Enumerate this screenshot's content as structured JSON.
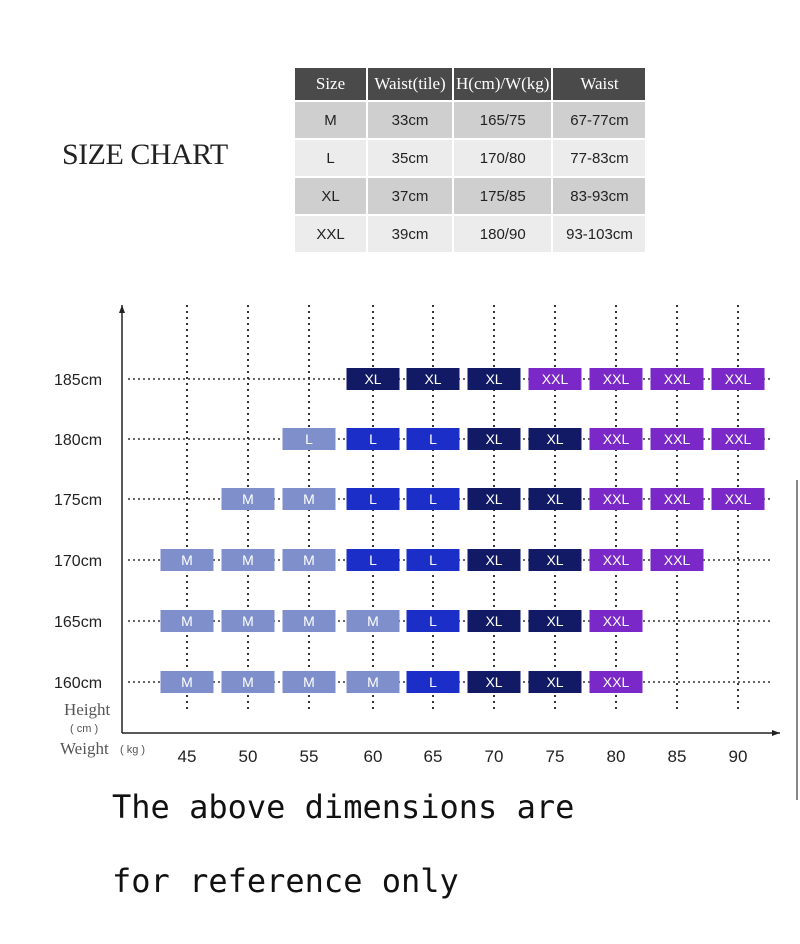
{
  "title": "SIZE CHART",
  "table": {
    "headers": [
      "Size",
      "Waist(tile)",
      "H(cm)/W(kg)",
      "Waist"
    ],
    "rows": [
      [
        "M",
        "33cm",
        "165/75",
        "67-77cm"
      ],
      [
        "L",
        "35cm",
        "170/80",
        "77-83cm"
      ],
      [
        "XL",
        "37cm",
        "175/85",
        "83-93cm"
      ],
      [
        "XXL",
        "39cm",
        "180/90",
        "93-103cm"
      ]
    ]
  },
  "chart_data": {
    "type": "heatmap",
    "title": "",
    "ylabel": "Height",
    "ylabel_unit": "( cm )",
    "xlabel": "Weight",
    "xlabel_unit": "( kg )",
    "x": [
      45,
      50,
      55,
      60,
      65,
      70,
      75,
      80,
      85,
      90
    ],
    "y_labels": [
      "185cm",
      "180cm",
      "175cm",
      "170cm",
      "165cm",
      "160cm"
    ],
    "grid": "dotted",
    "cells": [
      [
        null,
        null,
        null,
        "XL",
        "XL",
        "XL",
        "XXL",
        "XXL",
        "XXL",
        "XXL"
      ],
      [
        null,
        null,
        "L",
        "L",
        "L",
        "XL",
        "XL",
        "XXL",
        "XXL",
        "XXL"
      ],
      [
        null,
        "M",
        "M",
        "L",
        "L",
        "XL",
        "XL",
        "XXL",
        "XXL",
        "XXL"
      ],
      [
        "M",
        "M",
        "M",
        "L",
        "L",
        "XL",
        "XL",
        "XXL",
        "XXL",
        null
      ],
      [
        "M",
        "M",
        "M",
        "M",
        "L",
        "XL",
        "XL",
        "XXL",
        null,
        null
      ],
      [
        "M",
        "M",
        "M",
        "M",
        "L",
        "XL",
        "XL",
        "XXL",
        null,
        null
      ]
    ],
    "cell_colors": {
      "M": "#7f8fcb",
      "L": "#1b2fc8",
      "XL": "#121a66",
      "XXL": "#7a29c8"
    },
    "overrides": [
      {
        "row": 1,
        "col": 2,
        "color": "#7f8fcb"
      },
      {
        "row": 4,
        "col": 3,
        "color": "#7f8fcb"
      },
      {
        "row": 5,
        "col": 3,
        "color": "#7f8fcb"
      }
    ]
  },
  "footnote": {
    "line1": "The above dimensions are",
    "line2": "for reference only"
  }
}
